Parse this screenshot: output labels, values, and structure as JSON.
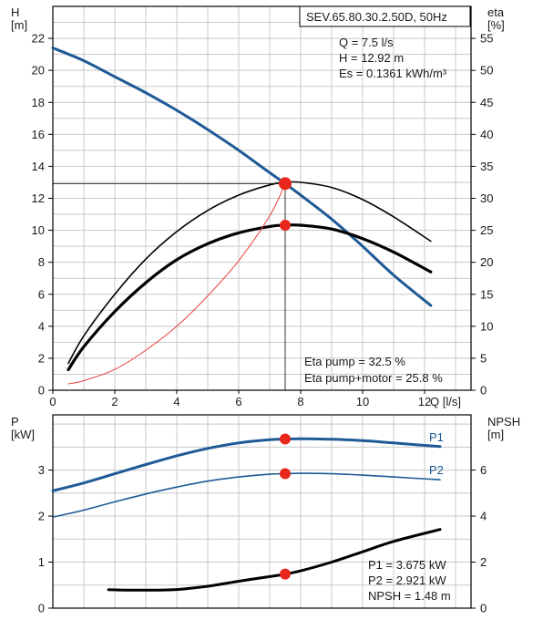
{
  "header": {
    "pump_model": "SEV.65.80.30.2.50D, 50Hz",
    "info_lines": [
      "Q = 7.5 l/s",
      "H = 12.92 m",
      "Es = 0.1361 kWh/m³"
    ]
  },
  "colors": {
    "head_curve": "#1f5a96",
    "power_curve": "#1f5a96",
    "eta_curve": "#000000",
    "npsh_curve": "#000000",
    "system_curve": "#e84040",
    "operating_point": "#e8261c",
    "grid": "#c8c8c8"
  },
  "chart_data": [
    {
      "type": "line",
      "title": "",
      "xlabel": "Q [l/s]",
      "ylabel": "H\n[m]",
      "y2label": "eta\n[%]",
      "xlim": [
        0,
        13.5
      ],
      "ylim": [
        0,
        24
      ],
      "y2lim": [
        0,
        60
      ],
      "xticks": [
        0,
        2,
        4,
        6,
        8,
        10,
        12
      ],
      "yticks": [
        0,
        2,
        4,
        6,
        8,
        10,
        12,
        14,
        16,
        18,
        20,
        22
      ],
      "y2ticks": [
        0,
        5,
        10,
        15,
        20,
        25,
        30,
        35,
        40,
        45,
        50,
        55
      ],
      "grid": true,
      "series": [
        {
          "role": "head",
          "axis": "y",
          "x": [
            0,
            1,
            2,
            3,
            4,
            5,
            6,
            7,
            7.5,
            8,
            9,
            10,
            11,
            12.2
          ],
          "values": [
            21.4,
            20.6,
            19.6,
            18.6,
            17.5,
            16.3,
            15.0,
            13.6,
            12.92,
            12.2,
            10.7,
            9.0,
            7.2,
            5.3
          ]
        },
        {
          "role": "eta_pump",
          "axis": "y2",
          "x": [
            0.5,
            1,
            2,
            3,
            4,
            5,
            6,
            7,
            7.5,
            8,
            9,
            10,
            11,
            12.2
          ],
          "values": [
            4.2,
            8.5,
            15.0,
            20.5,
            24.8,
            28.1,
            30.5,
            32.1,
            32.5,
            32.5,
            31.7,
            29.8,
            27.1,
            23.3
          ]
        },
        {
          "role": "eta_pump_motor",
          "axis": "y2",
          "x": [
            0.5,
            1,
            2,
            3,
            4,
            5,
            6,
            7,
            7.5,
            8,
            9,
            10,
            11,
            12.2
          ],
          "values": [
            3.2,
            6.8,
            12.3,
            16.8,
            20.4,
            22.9,
            24.6,
            25.6,
            25.8,
            25.8,
            25.2,
            23.7,
            21.6,
            18.5
          ]
        },
        {
          "role": "system",
          "axis": "y",
          "x": [
            0.5,
            1,
            2,
            3,
            4,
            5,
            6,
            7,
            7.5
          ],
          "values": [
            0.4,
            0.6,
            1.3,
            2.5,
            4.0,
            5.9,
            8.1,
            10.9,
            12.92
          ]
        }
      ],
      "operating_points": [
        {
          "axis": "y",
          "x": 7.5,
          "y": 12.92
        },
        {
          "axis": "y2",
          "x": 7.5,
          "y": 25.8
        }
      ],
      "annotations": [
        "Eta pump = 32.5 %",
        "Eta pump+motor = 25.8 %"
      ]
    },
    {
      "type": "line",
      "title": "",
      "xlabel": "",
      "ylabel": "P\n[kW]",
      "y2label": "NPSH\n[m]",
      "xlim": [
        0,
        13.5
      ],
      "ylim": [
        0,
        4.2
      ],
      "y2lim": [
        0,
        8.4
      ],
      "yticks": [
        0,
        1,
        2,
        3
      ],
      "y2ticks": [
        0,
        2,
        4,
        6
      ],
      "grid": true,
      "series": [
        {
          "name": "P1",
          "axis": "y",
          "x": [
            0,
            1,
            2,
            3,
            4,
            5,
            6,
            7,
            7.5,
            8,
            9,
            10,
            11,
            12.5
          ],
          "values": [
            2.55,
            2.72,
            2.92,
            3.12,
            3.31,
            3.47,
            3.59,
            3.66,
            3.675,
            3.68,
            3.67,
            3.64,
            3.59,
            3.51
          ]
        },
        {
          "name": "P2",
          "axis": "y",
          "x": [
            0,
            1,
            2,
            3,
            4,
            5,
            6,
            7,
            7.5,
            8,
            9,
            10,
            11,
            12.5
          ],
          "values": [
            1.98,
            2.13,
            2.31,
            2.48,
            2.63,
            2.76,
            2.85,
            2.91,
            2.921,
            2.93,
            2.92,
            2.89,
            2.85,
            2.79
          ]
        },
        {
          "role": "npsh",
          "axis": "y2",
          "x": [
            1.8,
            3,
            4,
            5,
            6,
            7,
            7.5,
            8,
            9,
            10,
            11,
            12.5
          ],
          "values": [
            0.8,
            0.78,
            0.81,
            0.95,
            1.17,
            1.37,
            1.48,
            1.62,
            2.0,
            2.45,
            2.9,
            3.42
          ]
        }
      ],
      "operating_points": [
        {
          "axis": "y",
          "x": 7.5,
          "y": 3.675
        },
        {
          "axis": "y",
          "x": 7.5,
          "y": 2.921
        },
        {
          "axis": "y2",
          "x": 7.5,
          "y": 1.48
        }
      ],
      "annotations": [
        "P1 = 3.675 kW",
        "P2 = 2.921 kW",
        "NPSH = 1.48 m"
      ]
    }
  ]
}
